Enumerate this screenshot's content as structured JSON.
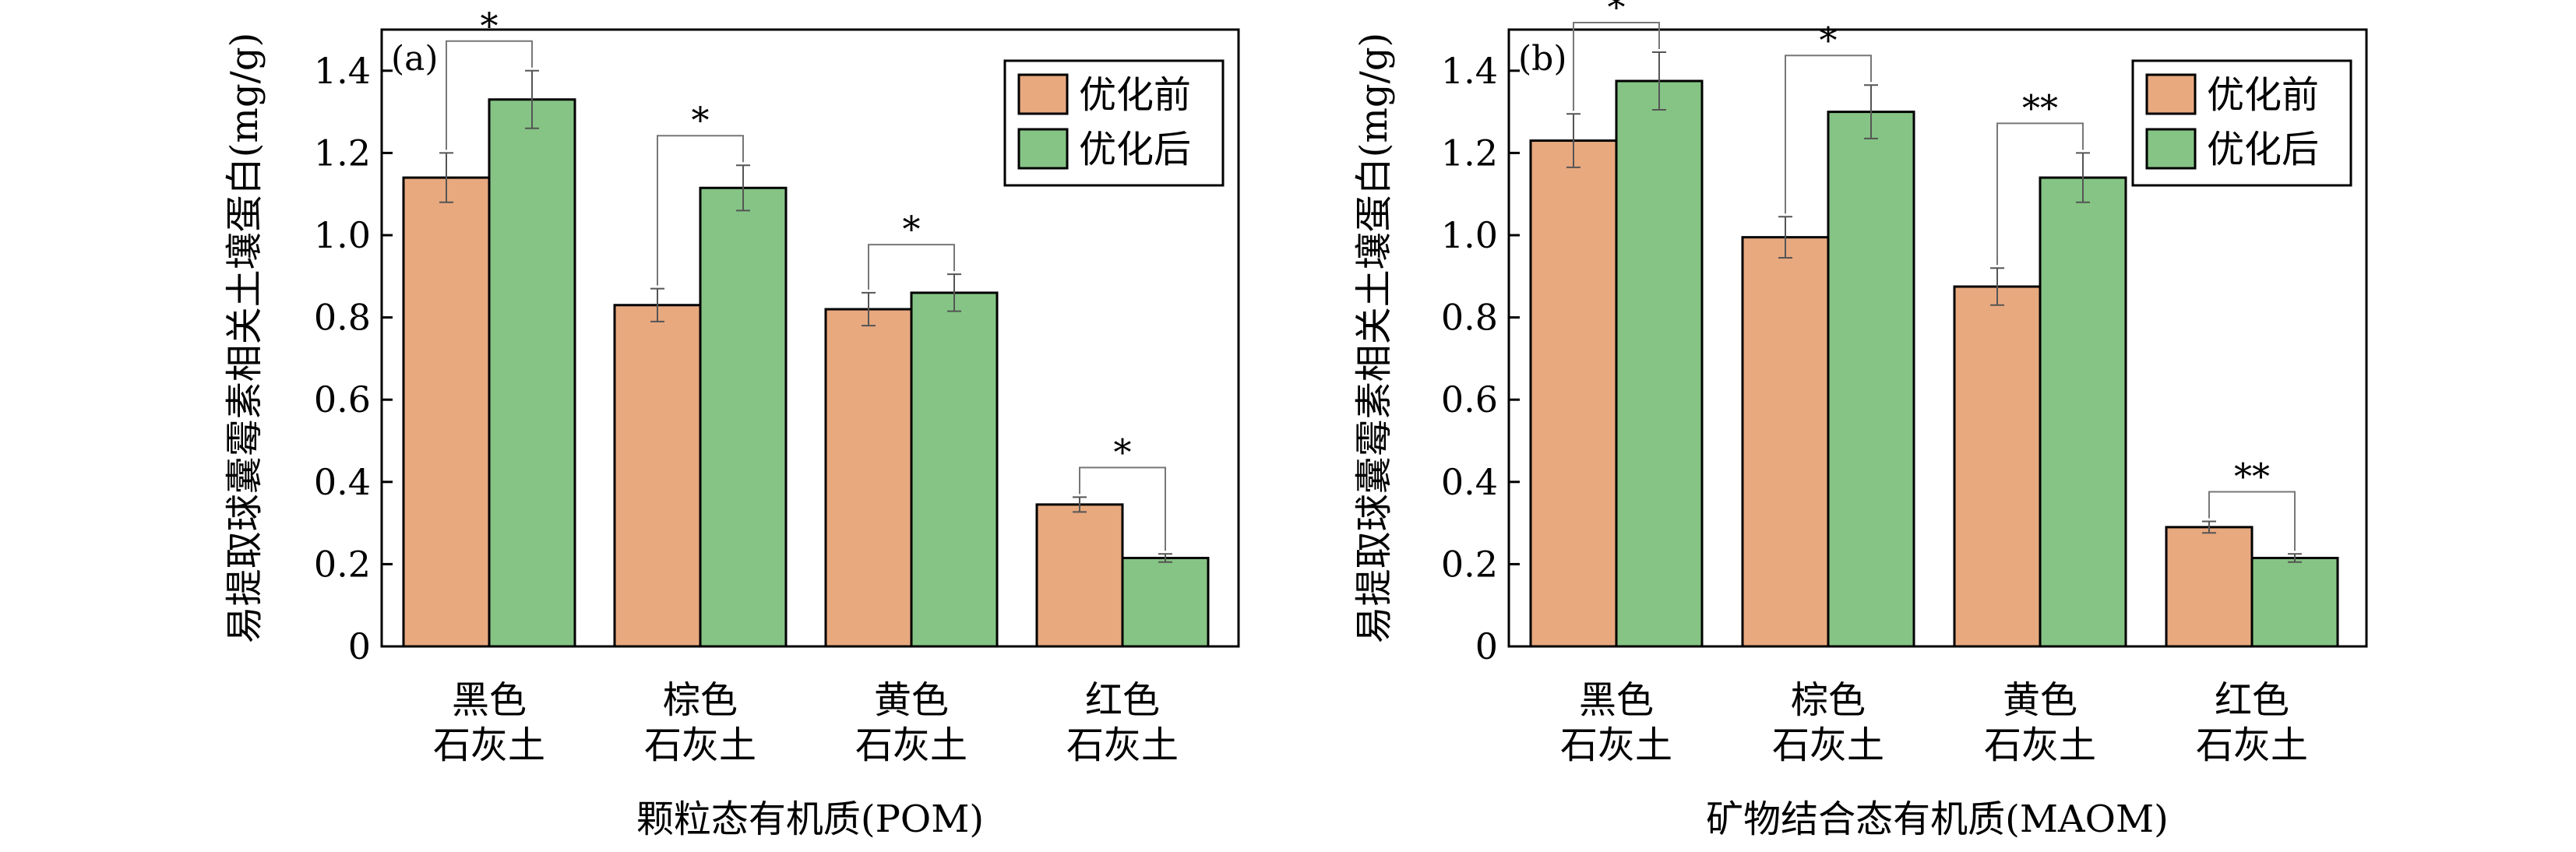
{
  "colors": {
    "before": "#E8A97F",
    "after": "#85C485",
    "edge": "#000000",
    "error": "#555555"
  },
  "legend": [
    "优化前",
    "优化后"
  ],
  "ylabel": "易提取球囊霉素相关土壤蛋白(mg/g)",
  "chart_data": [
    {
      "type": "bar",
      "panel_label": "(a)",
      "xlabel": "颗粒态有机质(POM)",
      "ylabel": "易提取球囊霉素相关土壤蛋白(mg/g)",
      "ylim": [
        0,
        1.5
      ],
      "yticks": [
        "0",
        "0.2",
        "0.4",
        "0.6",
        "0.8",
        "1.0",
        "1.2",
        "1.4"
      ],
      "categories": [
        [
          "黑色",
          "石灰土"
        ],
        [
          "棕色",
          "石灰土"
        ],
        [
          "黄色",
          "石灰土"
        ],
        [
          "红色",
          "石灰土"
        ]
      ],
      "series": [
        {
          "name": "优化前",
          "values": [
            1.14,
            0.83,
            0.82,
            0.345
          ],
          "errors": [
            0.06,
            0.04,
            0.04,
            0.018
          ]
        },
        {
          "name": "优化后",
          "values": [
            1.33,
            1.115,
            0.86,
            0.215
          ],
          "errors": [
            0.07,
            0.055,
            0.045,
            0.01
          ]
        }
      ],
      "significance": [
        "*",
        "*",
        "*",
        "*"
      ],
      "legend_position": "top-right",
      "grid": false
    },
    {
      "type": "bar",
      "panel_label": "(b)",
      "xlabel": "矿物结合态有机质(MAOM)",
      "ylabel": "易提取球囊霉素相关土壤蛋白(mg/g)",
      "ylim": [
        0,
        1.5
      ],
      "yticks": [
        "0",
        "0.2",
        "0.4",
        "0.6",
        "0.8",
        "1.0",
        "1.2",
        "1.4"
      ],
      "categories": [
        [
          "黑色",
          "石灰土"
        ],
        [
          "棕色",
          "石灰土"
        ],
        [
          "黄色",
          "石灰土"
        ],
        [
          "红色",
          "石灰土"
        ]
      ],
      "series": [
        {
          "name": "优化前",
          "values": [
            1.23,
            0.995,
            0.875,
            0.29
          ],
          "errors": [
            0.065,
            0.05,
            0.045,
            0.014
          ]
        },
        {
          "name": "优化后",
          "values": [
            1.375,
            1.3,
            1.14,
            0.215
          ],
          "errors": [
            0.07,
            0.065,
            0.06,
            0.01
          ]
        }
      ],
      "significance": [
        "*",
        "*",
        "**",
        "**"
      ],
      "legend_position": "top-right",
      "grid": false
    }
  ]
}
